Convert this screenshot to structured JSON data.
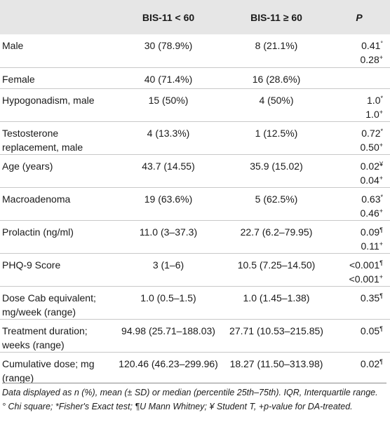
{
  "table": {
    "header": {
      "variable": "",
      "group1": "BIS-11 < 60",
      "group2": "BIS-11 ≥ 60",
      "p": "P"
    },
    "rows": [
      {
        "label": "Male",
        "g1": "30 (78.9%)",
        "g2": "8 (21.1%)",
        "p1": "0.41",
        "p1_mark": "°",
        "p2": "0.28",
        "p2_mark": "+"
      },
      {
        "label": "Female",
        "g1": "40 (71.4%)",
        "g2": "16 (28.6%)",
        "p1": "",
        "p1_mark": "",
        "p2": "",
        "p2_mark": ""
      },
      {
        "label": "Hypogonadism, male",
        "g1": "15 (50%)",
        "g2": "4 (50%)",
        "p1": "1.0",
        "p1_mark": "*",
        "p2": "1.0",
        "p2_mark": "+"
      },
      {
        "label": "Testosterone replacement, male",
        "g1": "4 (13.3%)",
        "g2": "1 (12.5%)",
        "p1": "0.72",
        "p1_mark": "*",
        "p2": "0.50",
        "p2_mark": "+"
      },
      {
        "label": "Age (years)",
        "g1": "43.7 (14.55)",
        "g2": "35.9 (15.02)",
        "p1": "0.02",
        "p1_mark": "¥",
        "p2": "0.04",
        "p2_mark": "+"
      },
      {
        "label": "Macroadenoma",
        "g1": "19 (63.6%)",
        "g2": "5 (62.5%)",
        "p1": "0.63",
        "p1_mark": "*",
        "p2": "0.46",
        "p2_mark": "+"
      },
      {
        "label": "Prolactin (ng/ml)",
        "g1": "11.0 (3–37.3)",
        "g2": "22.7 (6.2–79.95)",
        "p1": "0.09",
        "p1_mark": "¶",
        "p2": "0.11",
        "p2_mark": "+"
      },
      {
        "label": "PHQ-9 Score",
        "g1": "3 (1–6)",
        "g2": "10.5 (7.25–14.50)",
        "p1": "<0.001",
        "p1_mark": "¶",
        "p2": "<0.001",
        "p2_mark": "+"
      },
      {
        "label": "Dose Cab equivalent; mg/week (range)",
        "g1": "1.0 (0.5–1.5)",
        "g2": "1.0 (1.45–1.38)",
        "p1": "0.35",
        "p1_mark": "¶",
        "p2": "",
        "p2_mark": ""
      },
      {
        "label": "Treatment duration; weeks (range)",
        "g1": "94.98 (25.71–188.03)",
        "g2": "27.71 (10.53–215.85)",
        "p1": "0.05",
        "p1_mark": "¶",
        "p2": "",
        "p2_mark": ""
      },
      {
        "label": "Cumulative dose; mg (range)",
        "g1": "120.46 (46.23–299.96)",
        "g2": "18.27 (11.50–313.98)",
        "p1": "0.02",
        "p1_mark": "¶",
        "p2": "",
        "p2_mark": ""
      }
    ]
  },
  "footnotes": {
    "line1": "Data displayed as n (%), mean (± SD) or median (percentile 25th–75th). IQR, Interquartile range.",
    "line2": "° Chi square; *Fisher's Exact test; ¶U Mann Whitney; ¥ Student T, +p-value for DA-treated."
  }
}
